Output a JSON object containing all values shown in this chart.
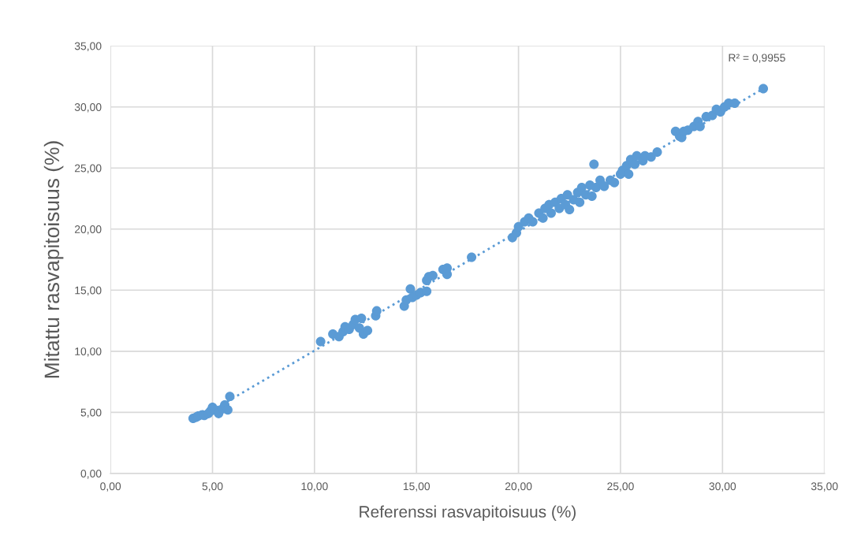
{
  "chart_data": {
    "type": "scatter",
    "xlabel": "Referenssi rasvapitoisuus (%)",
    "ylabel": "Mitattu rasvapitoisuus (%)",
    "annotations": [
      "R² = 0,9955"
    ],
    "series": [
      {
        "color": "#5b9bd5",
        "marker": "circle",
        "x": [
          4.05,
          4.2,
          4.3,
          4.5,
          4.6,
          4.8,
          4.9,
          5.0,
          5.1,
          5.3,
          5.5,
          5.6,
          5.75,
          5.85,
          10.3,
          10.9,
          11.2,
          11.4,
          11.5,
          11.7,
          11.9,
          12.0,
          12.2,
          12.3,
          12.4,
          12.6,
          13.0,
          13.05,
          14.4,
          14.5,
          14.7,
          14.8,
          15.0,
          15.2,
          15.5,
          15.5,
          15.6,
          15.8,
          16.3,
          16.5,
          16.5,
          17.7,
          19.7,
          19.9,
          20.0,
          20.3,
          20.5,
          20.7,
          21.0,
          21.2,
          21.3,
          21.5,
          21.6,
          21.8,
          22.0,
          22.1,
          22.3,
          22.4,
          22.5,
          22.7,
          22.9,
          23.0,
          23.1,
          23.3,
          23.5,
          23.6,
          23.7,
          23.8,
          24.0,
          24.2,
          24.5,
          24.7,
          25.0,
          25.1,
          25.3,
          25.4,
          25.5,
          25.7,
          25.8,
          26.1,
          26.2,
          26.5,
          26.8,
          27.7,
          27.9,
          28.0,
          28.1,
          28.3,
          28.6,
          28.8,
          28.9,
          29.2,
          29.5,
          29.7,
          29.9,
          30.1,
          30.3,
          30.6,
          32.0
        ],
        "values": [
          4.5,
          4.6,
          4.7,
          4.8,
          4.75,
          4.9,
          5.1,
          5.4,
          5.2,
          4.9,
          5.3,
          5.6,
          5.2,
          6.3,
          10.8,
          11.4,
          11.2,
          11.6,
          12.0,
          11.8,
          12.2,
          12.6,
          11.9,
          12.7,
          11.4,
          11.7,
          12.9,
          13.3,
          13.7,
          14.2,
          15.1,
          14.4,
          14.6,
          14.8,
          14.9,
          15.8,
          16.1,
          16.2,
          16.7,
          16.3,
          16.8,
          17.7,
          19.3,
          19.7,
          20.2,
          20.6,
          20.9,
          20.6,
          21.3,
          20.9,
          21.7,
          22.0,
          21.3,
          22.2,
          21.7,
          22.5,
          22.0,
          22.8,
          21.6,
          22.4,
          23.0,
          22.2,
          23.4,
          22.8,
          23.6,
          22.7,
          25.3,
          23.4,
          24.0,
          23.5,
          24.0,
          23.8,
          24.5,
          24.8,
          25.2,
          24.5,
          25.7,
          25.3,
          26.0,
          25.6,
          26.0,
          25.9,
          26.3,
          28.0,
          27.6,
          27.5,
          28.0,
          28.1,
          28.4,
          28.8,
          28.4,
          29.2,
          29.3,
          29.8,
          29.6,
          30.0,
          30.3,
          30.3,
          31.5
        ]
      },
      {
        "type": "line",
        "color": "#5b9bd5",
        "line_style": "dotted",
        "marker": "none",
        "x": [
          4.0,
          32.0
        ],
        "values": [
          4.2,
          31.5
        ]
      }
    ],
    "xlim": [
      0,
      35
    ],
    "ylim": [
      0,
      35
    ],
    "xticks": [
      {
        "value": 0,
        "label": "0,00"
      },
      {
        "value": 5,
        "label": "5,00"
      },
      {
        "value": 10,
        "label": "10,00"
      },
      {
        "value": 15,
        "label": "15,00"
      },
      {
        "value": 20,
        "label": "20,00"
      },
      {
        "value": 25,
        "label": "25,00"
      },
      {
        "value": 30,
        "label": "30,00"
      },
      {
        "value": 35,
        "label": "35,00"
      }
    ],
    "yticks": [
      {
        "value": 0,
        "label": "0,00"
      },
      {
        "value": 5,
        "label": "5,00"
      },
      {
        "value": 10,
        "label": "10,00"
      },
      {
        "value": 15,
        "label": "15,00"
      },
      {
        "value": 20,
        "label": "20,00"
      },
      {
        "value": 25,
        "label": "25,00"
      },
      {
        "value": 30,
        "label": "30,00"
      },
      {
        "value": 35,
        "label": "35,00"
      }
    ],
    "grid": true,
    "legend": false
  }
}
